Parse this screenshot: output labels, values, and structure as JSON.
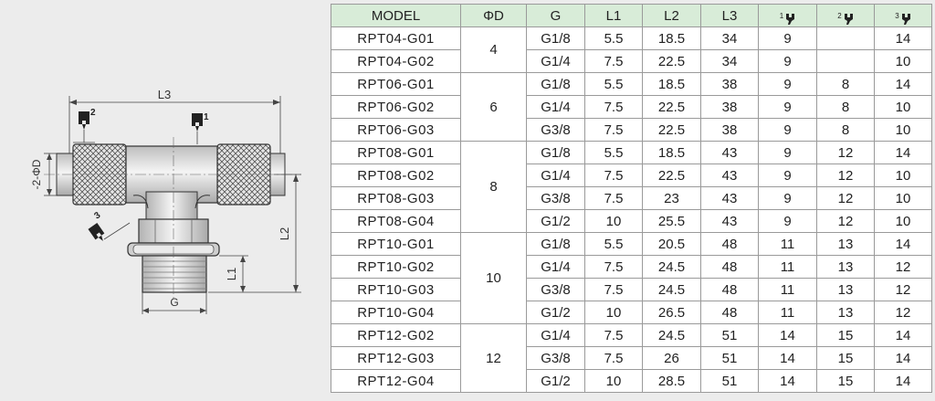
{
  "drawing": {
    "dim_L3": "L3",
    "dim_L2": "L2",
    "dim_L1": "L1",
    "dim_G": "G",
    "dim_D": "-2-ΦD",
    "wrench_1": "1",
    "wrench_2": "2",
    "wrench_3": "3"
  },
  "table": {
    "headers": {
      "model": "MODEL",
      "od": "ΦD",
      "g": "G",
      "l1": "L1",
      "l2": "L2",
      "l3": "L3",
      "w1": "1",
      "w2": "2",
      "w3": "3"
    },
    "groups": [
      {
        "od": "4",
        "rows": [
          {
            "model": "RPT04-G01",
            "g": "G1/8",
            "l1": "5.5",
            "l2": "18.5",
            "l3": "34",
            "w1": "9",
            "w2": "",
            "w3": "14"
          },
          {
            "model": "RPT04-G02",
            "g": "G1/4",
            "l1": "7.5",
            "l2": "22.5",
            "l3": "34",
            "w1": "9",
            "w2": "",
            "w3": "10"
          }
        ]
      },
      {
        "od": "6",
        "rows": [
          {
            "model": "RPT06-G01",
            "g": "G1/8",
            "l1": "5.5",
            "l2": "18.5",
            "l3": "38",
            "w1": "9",
            "w2": "8",
            "w3": "14"
          },
          {
            "model": "RPT06-G02",
            "g": "G1/4",
            "l1": "7.5",
            "l2": "22.5",
            "l3": "38",
            "w1": "9",
            "w2": "8",
            "w3": "10"
          },
          {
            "model": "RPT06-G03",
            "g": "G3/8",
            "l1": "7.5",
            "l2": "22.5",
            "l3": "38",
            "w1": "9",
            "w2": "8",
            "w3": "10"
          }
        ]
      },
      {
        "od": "8",
        "rows": [
          {
            "model": "RPT08-G01",
            "g": "G1/8",
            "l1": "5.5",
            "l2": "18.5",
            "l3": "43",
            "w1": "9",
            "w2": "12",
            "w3": "14"
          },
          {
            "model": "RPT08-G02",
            "g": "G1/4",
            "l1": "7.5",
            "l2": "22.5",
            "l3": "43",
            "w1": "9",
            "w2": "12",
            "w3": "10"
          },
          {
            "model": "RPT08-G03",
            "g": "G3/8",
            "l1": "7.5",
            "l2": "23",
            "l3": "43",
            "w1": "9",
            "w2": "12",
            "w3": "10"
          },
          {
            "model": "RPT08-G04",
            "g": "G1/2",
            "l1": "10",
            "l2": "25.5",
            "l3": "43",
            "w1": "9",
            "w2": "12",
            "w3": "10"
          }
        ]
      },
      {
        "od": "10",
        "rows": [
          {
            "model": "RPT10-G01",
            "g": "G1/8",
            "l1": "5.5",
            "l2": "20.5",
            "l3": "48",
            "w1": "11",
            "w2": "13",
            "w3": "14"
          },
          {
            "model": "RPT10-G02",
            "g": "G1/4",
            "l1": "7.5",
            "l2": "24.5",
            "l3": "48",
            "w1": "11",
            "w2": "13",
            "w3": "12"
          },
          {
            "model": "RPT10-G03",
            "g": "G3/8",
            "l1": "7.5",
            "l2": "24.5",
            "l3": "48",
            "w1": "11",
            "w2": "13",
            "w3": "12"
          },
          {
            "model": "RPT10-G04",
            "g": "G1/2",
            "l1": "10",
            "l2": "26.5",
            "l3": "48",
            "w1": "11",
            "w2": "13",
            "w3": "12"
          }
        ]
      },
      {
        "od": "12",
        "rows": [
          {
            "model": "RPT12-G02",
            "g": "G1/4",
            "l1": "7.5",
            "l2": "24.5",
            "l3": "51",
            "w1": "14",
            "w2": "15",
            "w3": "14"
          },
          {
            "model": "RPT12-G03",
            "g": "G3/8",
            "l1": "7.5",
            "l2": "26",
            "l3": "51",
            "w1": "14",
            "w2": "15",
            "w3": "14"
          },
          {
            "model": "RPT12-G04",
            "g": "G1/2",
            "l1": "10",
            "l2": "28.5",
            "l3": "51",
            "w1": "14",
            "w2": "15",
            "w3": "14"
          }
        ]
      }
    ]
  }
}
